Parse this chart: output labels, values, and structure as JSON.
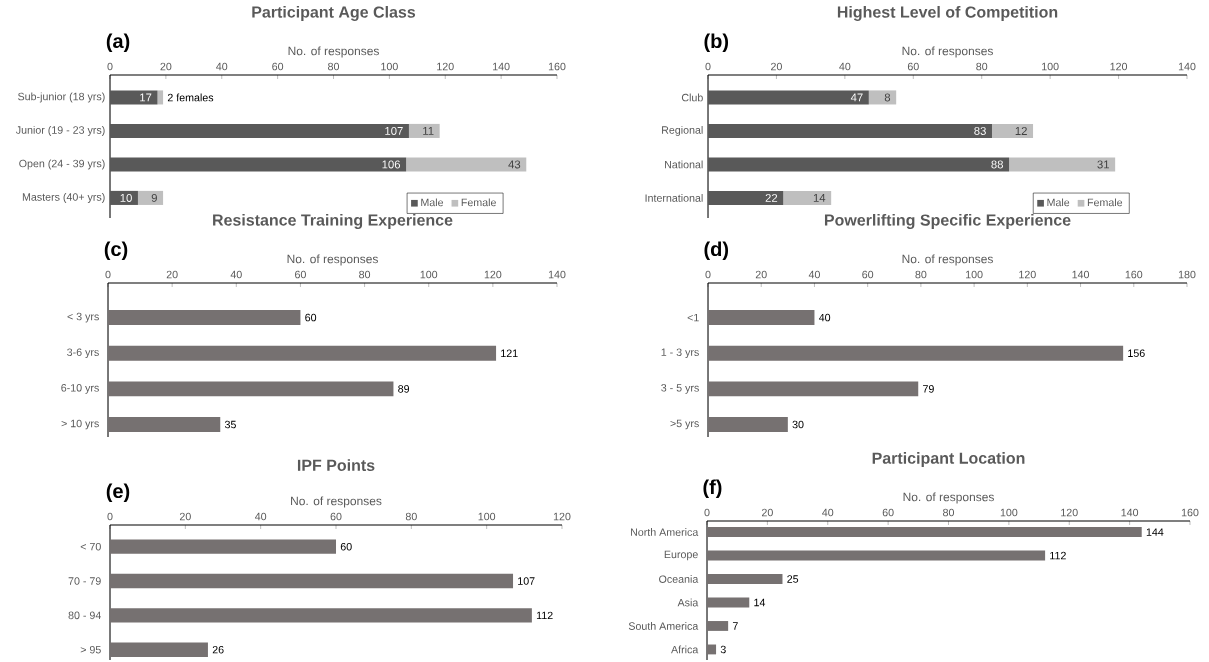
{
  "chart_data": [
    {
      "type": "bar",
      "orientation": "horizontal",
      "stacked": true,
      "title": "Participant Age Class",
      "xlabel": "No. of responses",
      "annotations": [
        "(a)"
      ],
      "categories": [
        "Sub-junior (18 yrs)",
        "Junior (19 - 23 yrs)",
        "Open (24 - 39 yrs)",
        "Masters (40+ yrs)"
      ],
      "series": [
        {
          "name": "Male",
          "color": "#595959",
          "values": [
            17,
            107,
            106,
            10
          ],
          "value_labels": [
            "17",
            "107",
            "106",
            "10"
          ]
        },
        {
          "name": "Female",
          "color": "#bfbfbf",
          "values": [
            2,
            11,
            43,
            9
          ],
          "value_labels": [
            "2 females",
            "11",
            "43",
            "9"
          ]
        }
      ],
      "xlim": [
        0,
        160
      ],
      "xticks": [
        0,
        20,
        40,
        60,
        80,
        100,
        120,
        140,
        160
      ],
      "legend": "bottom right"
    },
    {
      "type": "bar",
      "orientation": "horizontal",
      "stacked": true,
      "title": "Highest Level of Competition",
      "xlabel": "No. of responses",
      "annotations": [
        "(b)"
      ],
      "categories": [
        "Club",
        "Regional",
        "National",
        "International"
      ],
      "series": [
        {
          "name": "Male",
          "color": "#595959",
          "values": [
            47,
            83,
            88,
            22
          ]
        },
        {
          "name": "Female",
          "color": "#bfbfbf",
          "values": [
            8,
            12,
            31,
            14
          ]
        }
      ],
      "xlim": [
        0,
        140
      ],
      "xticks": [
        0,
        20,
        40,
        60,
        80,
        100,
        120,
        140
      ],
      "legend": "bottom right",
      "data_labels": true
    },
    {
      "type": "bar",
      "orientation": "horizontal",
      "title": "Resistance Training Experience",
      "xlabel": "No. of responses",
      "annotations": [
        "(c)"
      ],
      "categories": [
        "< 3 yrs",
        "3-6 yrs",
        "6-10 yrs",
        "> 10 yrs"
      ],
      "values": [
        60,
        121,
        89,
        35
      ],
      "color": "#767171",
      "xlim": [
        0,
        140
      ],
      "xticks": [
        0,
        20,
        40,
        60,
        80,
        100,
        120,
        140
      ],
      "data_labels": true
    },
    {
      "type": "bar",
      "orientation": "horizontal",
      "title": "Powerlifting Specific Experience",
      "xlabel": "No. of responses",
      "annotations": [
        "(d)"
      ],
      "categories": [
        "<1",
        "1 - 3 yrs",
        "3 - 5 yrs",
        ">5 yrs"
      ],
      "values": [
        40,
        156,
        79,
        30
      ],
      "color": "#767171",
      "xlim": [
        0,
        180
      ],
      "xticks": [
        0,
        20,
        40,
        60,
        80,
        100,
        120,
        140,
        160,
        180
      ],
      "data_labels": true
    },
    {
      "type": "bar",
      "orientation": "horizontal",
      "title": "IPF Points",
      "xlabel": "No. of responses",
      "annotations": [
        "(e)"
      ],
      "categories": [
        "< 70",
        "70 - 79",
        "80 - 94",
        "> 95"
      ],
      "values": [
        60,
        107,
        112,
        26
      ],
      "color": "#767171",
      "xlim": [
        0,
        120
      ],
      "xticks": [
        0,
        20,
        40,
        60,
        80,
        100,
        120
      ],
      "data_labels": true
    },
    {
      "type": "bar",
      "orientation": "horizontal",
      "title": "Participant Location",
      "xlabel": "No. of responses",
      "annotations": [
        "(f)"
      ],
      "categories": [
        "North America",
        "Europe",
        "Oceania",
        "Asia",
        "South America",
        "Africa"
      ],
      "values": [
        144,
        112,
        25,
        14,
        7,
        3
      ],
      "color": "#767171",
      "xlim": [
        0,
        160
      ],
      "xticks": [
        0,
        20,
        40,
        60,
        80,
        100,
        120,
        140,
        160
      ],
      "data_labels": true
    }
  ]
}
